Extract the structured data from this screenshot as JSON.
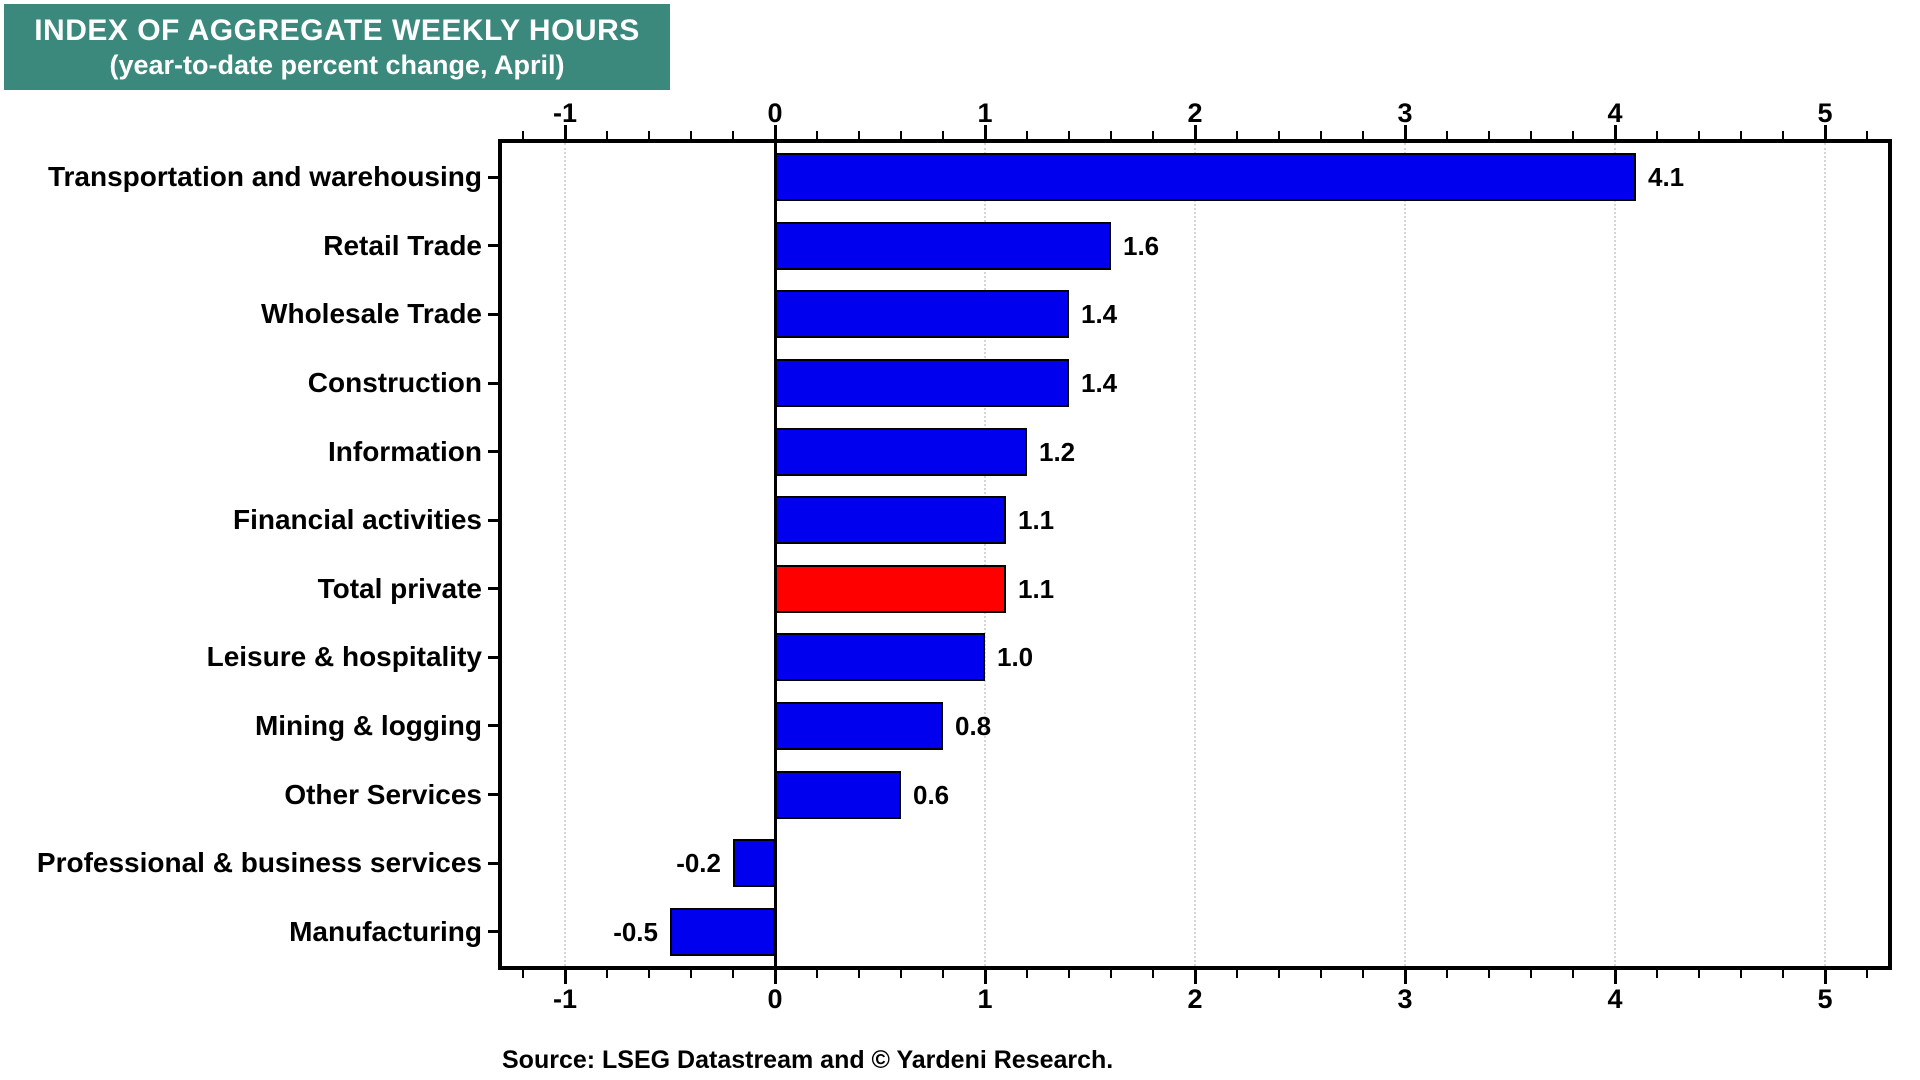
{
  "chart_data": {
    "type": "bar",
    "orientation": "horizontal",
    "title": "INDEX OF AGGREGATE WEEKLY HOURS",
    "subtitle": "(year-to-date percent change, April)",
    "categories": [
      "Transportation and warehousing",
      "Retail Trade",
      "Wholesale Trade",
      "Construction",
      "Information",
      "Financial activities",
      "Total private",
      "Leisure & hospitality",
      "Mining & logging",
      "Other Services",
      "Professional & business services",
      "Manufacturing"
    ],
    "values": [
      4.1,
      1.6,
      1.4,
      1.4,
      1.2,
      1.1,
      1.1,
      1.0,
      0.8,
      0.6,
      -0.2,
      -0.5
    ],
    "value_labels": [
      "4.1",
      "1.6",
      "1.4",
      "1.4",
      "1.2",
      "1.1",
      "1.1",
      "1.0",
      "0.8",
      "0.6",
      "-0.2",
      "-0.5"
    ],
    "highlight_index": 6,
    "highlight_category": "Total private",
    "colors": {
      "bar": "#0000EE",
      "highlight_bar": "#FF0000",
      "title_background": "#3B897C",
      "title_text": "#FFFFFF",
      "gridline": "#D6D6D6",
      "axis": "#000000"
    },
    "xlim": [
      -1.3,
      5.3
    ],
    "x_major_ticks": [
      -1,
      0,
      1,
      2,
      3,
      4,
      5
    ],
    "x_tick_labels": [
      "-1",
      "0",
      "1",
      "2",
      "3",
      "4",
      "5"
    ],
    "minor_tick_step": 0.2,
    "gridlines_at": [
      -1,
      1,
      2,
      3,
      4,
      5
    ],
    "grid_style": "dotted",
    "axes_shown": [
      "top",
      "bottom"
    ],
    "zero_line": true,
    "legend": "none",
    "source": "Source: LSEG Datastream and © Yardeni Research."
  }
}
